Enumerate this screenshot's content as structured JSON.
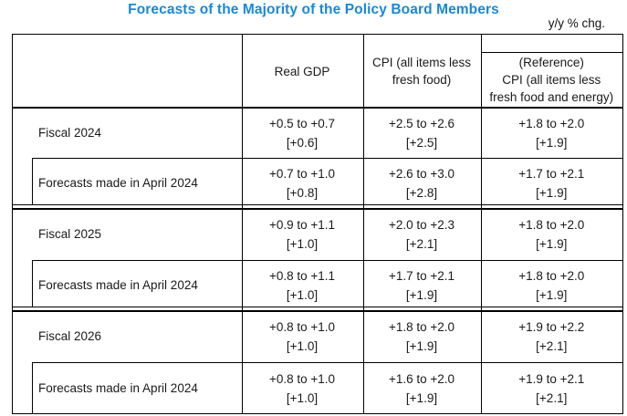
{
  "title": "Forecasts of the Majority of the Policy Board Members",
  "unit_note": "y/y % chg.",
  "table": {
    "header": {
      "real_gdp": "Real GDP",
      "cpi_line1": "CPI (all items less",
      "cpi_line2": "fresh food)",
      "ref_line1": "(Reference)",
      "ref_line2": "CPI (all items less",
      "ref_line3": "fresh food and energy)"
    },
    "rows": [
      {
        "label": "Fiscal 2024",
        "gdp_range": "+0.5 to +0.7",
        "gdp_point": "[+0.6]",
        "cpi_range": "+2.5 to +2.6",
        "cpi_point": "[+2.5]",
        "ref_range": "+1.8 to +2.0",
        "ref_point": "[+1.9]"
      },
      {
        "label": "Forecasts made in April 2024",
        "gdp_range": "+0.7 to +1.0",
        "gdp_point": "[+0.8]",
        "cpi_range": "+2.6 to +3.0",
        "cpi_point": "[+2.8]",
        "ref_range": "+1.7 to +2.1",
        "ref_point": "[+1.9]"
      },
      {
        "label": "Fiscal 2025",
        "gdp_range": "+0.9 to +1.1",
        "gdp_point": "[+1.0]",
        "cpi_range": "+2.0 to +2.3",
        "cpi_point": "[+2.1]",
        "ref_range": "+1.8 to +2.0",
        "ref_point": "[+1.9]"
      },
      {
        "label": "Forecasts made in April 2024",
        "gdp_range": "+0.8 to +1.1",
        "gdp_point": "[+1.0]",
        "cpi_range": "+1.7 to +2.1",
        "cpi_point": "[+1.9]",
        "ref_range": "+1.8 to +2.0",
        "ref_point": "[+1.9]"
      },
      {
        "label": "Fiscal 2026",
        "gdp_range": "+0.8 to +1.0",
        "gdp_point": "[+1.0]",
        "cpi_range": "+1.8 to +2.0",
        "cpi_point": "[+1.9]",
        "ref_range": "+1.9 to +2.2",
        "ref_point": "[+2.1]"
      },
      {
        "label": "Forecasts made in April 2024",
        "gdp_range": "+0.8 to +1.0",
        "gdp_point": "[+1.0]",
        "cpi_range": "+1.6 to +2.0",
        "cpi_point": "[+1.9]",
        "ref_range": "+1.9 to +2.1",
        "ref_point": "[+2.1]"
      }
    ]
  },
  "colors": {
    "title_blue": "#1689d9",
    "line_black": "#000000"
  }
}
